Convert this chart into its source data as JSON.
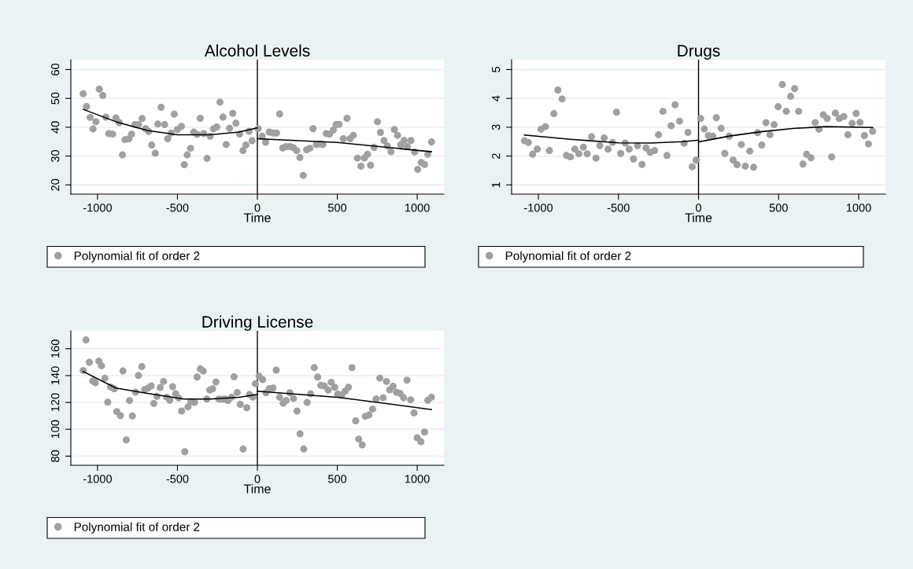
{
  "chart_data": [
    {
      "type": "scatter",
      "title": "Alcohol Levels",
      "xlabel": "Time",
      "xlim": [
        -1167,
        1167
      ],
      "xticks": [
        -1000,
        -500,
        0,
        500,
        1000
      ],
      "ylim": [
        16.8,
        63.4
      ],
      "yticks": [
        20,
        30,
        40,
        50,
        60
      ],
      "grid": "y",
      "legend": "bottom",
      "marker": "circle",
      "ref_lines": [
        {
          "axis": "x",
          "value": 0,
          "color": "#000000"
        }
      ],
      "series": [
        {
          "name": "Polynomial fit of order 2",
          "color": "#a0a0a0",
          "x": [
            -1090,
            -1069,
            -1046,
            -1028,
            -1010,
            -989,
            -967,
            -948,
            -930,
            -905,
            -885,
            -864,
            -844,
            -828,
            -803,
            -787,
            -766,
            -743,
            -721,
            -700,
            -680,
            -661,
            -639,
            -623,
            -602,
            -580,
            -561,
            -539,
            -520,
            -500,
            -475,
            -457,
            -439,
            -418,
            -398,
            -377,
            -357,
            -336,
            -315,
            -295,
            -275,
            -254,
            -234,
            -215,
            -195,
            -174,
            -154,
            -134,
            -111,
            -90,
            -72,
            -52,
            -33,
            5,
            30,
            52,
            74,
            98,
            120,
            139,
            159,
            180,
            205,
            225,
            246,
            266,
            287,
            308,
            328,
            348,
            369,
            390,
            410,
            431,
            451,
            475,
            492,
            511,
            538,
            561,
            580,
            600,
            626,
            648,
            669,
            689,
            708,
            730,
            751,
            770,
            792,
            813,
            836,
            857,
            877,
            897,
            918,
            938,
            961,
            984,
            1003,
            1025,
            1046,
            1066,
            1089
          ],
          "values": [
            51.6,
            47.2,
            43.4,
            39.4,
            41.9,
            53.2,
            51.0,
            43.5,
            37.8,
            37.6,
            43.2,
            41.6,
            30.4,
            35.7,
            36.0,
            37.6,
            40.9,
            40.9,
            43.0,
            39.5,
            38.5,
            33.8,
            31.0,
            41.1,
            46.9,
            40.9,
            36.0,
            38.0,
            44.5,
            39.2,
            40.3,
            27.0,
            30.4,
            32.7,
            38.3,
            37.5,
            43.1,
            37.8,
            29.2,
            36.9,
            39.4,
            40.1,
            48.7,
            43.5,
            34.0,
            39.6,
            44.8,
            41.4,
            37.6,
            31.9,
            33.8,
            38.6,
            35.3,
            39.5,
            36.9,
            34.8,
            38.3,
            38.0,
            38.0,
            44.6,
            32.8,
            33.3,
            33.3,
            32.9,
            31.9,
            29.5,
            23.3,
            32.2,
            32.7,
            39.5,
            34.0,
            34.2,
            34.0,
            37.8,
            37.6,
            39.0,
            40.9,
            41.0,
            36.0,
            43.1,
            36.0,
            37.2,
            29.3,
            26.5,
            29.3,
            30.6,
            26.8,
            33.0,
            41.9,
            38.2,
            35.4,
            33.5,
            31.5,
            39.2,
            37.2,
            33.9,
            35.4,
            33.3,
            35.4,
            31.4,
            25.4,
            27.8,
            27.1,
            30.6,
            34.9
          ]
        },
        {
          "type": "line",
          "color": "#000000",
          "marker": "none",
          "x": [
            -1090,
            -885,
            -689,
            -500,
            -295,
            -115,
            0
          ],
          "values": [
            46.2,
            41.9,
            38.9,
            37.4,
            37.4,
            38.3,
            39.8
          ]
        },
        {
          "type": "line",
          "color": "#000000",
          "marker": "none",
          "x": [
            0,
            500,
            1089
          ],
          "values": [
            36.0,
            34.7,
            31.5
          ]
        }
      ]
    },
    {
      "type": "scatter",
      "title": "Drugs",
      "xlabel": "Time",
      "xlim": [
        -1167,
        1167
      ],
      "xticks": [
        -1000,
        -500,
        0,
        500,
        1000
      ],
      "ylim": [
        0.68,
        5.34
      ],
      "yticks": [
        1,
        2,
        3,
        4,
        5
      ],
      "grid": "y",
      "legend": "bottom",
      "marker": "circle",
      "ref_lines": [
        {
          "axis": "x",
          "value": 0,
          "color": "#000000"
        }
      ],
      "series": [
        {
          "name": "Polynomial fit of order 2",
          "color": "#a0a0a0",
          "x": [
            -1087,
            -1062,
            -1036,
            -1007,
            -984,
            -956,
            -931,
            -903,
            -878,
            -852,
            -824,
            -800,
            -772,
            -747,
            -719,
            -695,
            -668,
            -640,
            -616,
            -589,
            -565,
            -537,
            -512,
            -486,
            -458,
            -433,
            -406,
            -381,
            -353,
            -328,
            -302,
            -274,
            -250,
            -222,
            -197,
            -171,
            -146,
            -118,
            -90,
            -66,
            -39,
            -15,
            13,
            36,
            61,
            89,
            111,
            141,
            164,
            192,
            216,
            241,
            267,
            292,
            320,
            344,
            369,
            395,
            421,
            446,
            472,
            497,
            523,
            548,
            575,
            600,
            625,
            652,
            675,
            702,
            728,
            752,
            779,
            803,
            831,
            854,
            879,
            907,
            933,
            959,
            984,
            1008,
            1036,
            1061,
            1087
          ],
          "values": [
            2.53,
            2.47,
            2.06,
            2.24,
            2.93,
            3.02,
            2.19,
            3.47,
            4.29,
            3.98,
            2.02,
            1.97,
            2.24,
            2.08,
            2.31,
            2.08,
            2.67,
            1.93,
            2.36,
            2.63,
            2.24,
            2.47,
            3.52,
            2.09,
            2.45,
            2.24,
            1.9,
            2.36,
            1.71,
            2.28,
            2.13,
            2.19,
            2.74,
            3.55,
            2.02,
            3.05,
            3.78,
            3.21,
            2.44,
            2.82,
            1.63,
            1.86,
            3.3,
            2.94,
            2.71,
            2.69,
            3.33,
            2.96,
            2.09,
            2.69,
            1.86,
            1.7,
            2.4,
            1.65,
            2.17,
            1.61,
            2.81,
            2.38,
            3.16,
            2.74,
            3.09,
            3.71,
            4.48,
            3.55,
            4.07,
            4.34,
            3.55,
            1.72,
            2.06,
            1.94,
            3.16,
            2.93,
            3.43,
            3.3,
            1.97,
            3.49,
            3.3,
            3.37,
            2.74,
            3.13,
            3.48,
            3.17,
            2.71,
            2.42,
            2.86
          ]
        },
        {
          "type": "line",
          "color": "#000000",
          "marker": "none",
          "x": [
            -1087,
            -800,
            -500,
            -300,
            -100,
            0
          ],
          "values": [
            2.73,
            2.58,
            2.46,
            2.45,
            2.5,
            2.55
          ]
        },
        {
          "type": "line",
          "color": "#000000",
          "marker": "none",
          "x": [
            0,
            200,
            400,
            600,
            800,
            1087
          ],
          "values": [
            2.49,
            2.7,
            2.85,
            2.96,
            3.02,
            2.99
          ]
        }
      ]
    },
    {
      "type": "scatter",
      "title": "Driving License",
      "xlabel": "Time",
      "xlim": [
        -1167,
        1167
      ],
      "xticks": [
        -1000,
        -500,
        0,
        500,
        1000
      ],
      "ylim": [
        73.2,
        173.3
      ],
      "yticks": [
        80,
        100,
        120,
        140,
        160
      ],
      "grid": "y",
      "legend": "bottom",
      "marker": "circle",
      "ref_lines": [
        {
          "axis": "x",
          "value": 0,
          "color": "#000000"
        }
      ],
      "series": [
        {
          "name": "Polynomial fit of order 2",
          "color": "#a0a0a0",
          "x": [
            -1090,
            -1072,
            -1051,
            -1030,
            -1013,
            -992,
            -975,
            -954,
            -936,
            -918,
            -895,
            -880,
            -857,
            -841,
            -820,
            -800,
            -782,
            -762,
            -744,
            -723,
            -705,
            -684,
            -664,
            -648,
            -628,
            -608,
            -587,
            -567,
            -548,
            -530,
            -511,
            -492,
            -474,
            -454,
            -434,
            -416,
            -393,
            -377,
            -357,
            -339,
            -316,
            -298,
            -280,
            -259,
            -241,
            -221,
            -202,
            -184,
            -161,
            -146,
            -126,
            -107,
            -89,
            -66,
            -49,
            -28,
            -13,
            11,
            33,
            54,
            75,
            98,
            118,
            139,
            161,
            180,
            203,
            226,
            248,
            267,
            290,
            311,
            333,
            356,
            377,
            397,
            418,
            443,
            462,
            484,
            503,
            528,
            549,
            570,
            592,
            615,
            634,
            656,
            675,
            698,
            721,
            743,
            766,
            787,
            808,
            828,
            849,
            870,
            892,
            915,
            936,
            959,
            980,
            1000,
            1023,
            1046,
            1066,
            1089
          ],
          "values": [
            143.8,
            166.6,
            149.9,
            136.0,
            134.6,
            150.8,
            147.3,
            138.1,
            120.2,
            131.5,
            130.1,
            113.2,
            110.2,
            143.4,
            92.1,
            121.4,
            109.9,
            127.6,
            140.1,
            146.7,
            129.6,
            130.7,
            132.3,
            119.2,
            124.5,
            131.1,
            135.6,
            123.9,
            121.6,
            131.7,
            126.4,
            123.3,
            113.6,
            83.3,
            116.7,
            120.6,
            120.0,
            138.9,
            145.0,
            143.4,
            122.5,
            129.2,
            130.1,
            135.2,
            122.5,
            122.3,
            122.5,
            121.4,
            123.9,
            139.1,
            127.4,
            118.6,
            85.3,
            116.1,
            125.9,
            123.9,
            134.0,
            139.5,
            137.0,
            127.2,
            130.3,
            130.7,
            144.0,
            123.9,
            119.4,
            121.4,
            127.2,
            122.9,
            113.6,
            96.6,
            85.3,
            120.0,
            126.4,
            146.0,
            138.9,
            132.7,
            132.3,
            129.2,
            135.0,
            131.3,
            126.2,
            125.5,
            128.4,
            131.3,
            146.0,
            106.3,
            92.7,
            88.4,
            109.7,
            110.6,
            115.1,
            122.5,
            138.1,
            123.5,
            135.6,
            129.4,
            132.1,
            127.6,
            126.8,
            123.5,
            136.6,
            122.0,
            112.2,
            93.7,
            90.7,
            97.9,
            121.6,
            123.9
          ]
        },
        {
          "type": "line",
          "color": "#000000",
          "marker": "none",
          "x": [
            -1090,
            -885,
            -689,
            -459,
            -295,
            -115,
            0
          ],
          "values": [
            143.0,
            130.7,
            126.8,
            122.5,
            122.5,
            123.9,
            125.9
          ]
        },
        {
          "type": "line",
          "color": "#000000",
          "marker": "none",
          "x": [
            0,
            500,
            1089
          ],
          "values": [
            128.4,
            123.9,
            114.7
          ]
        }
      ]
    }
  ]
}
